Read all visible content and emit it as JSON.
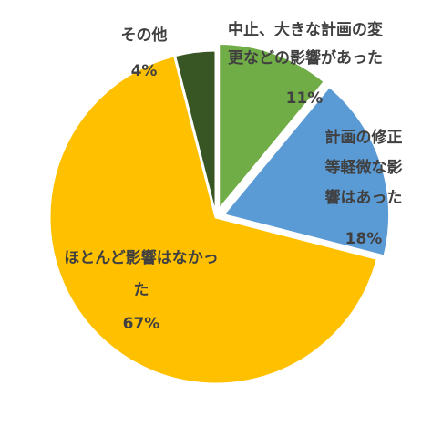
{
  "chart_data": {
    "type": "pie",
    "title": "",
    "start_angle_deg": 0,
    "direction": "clockwise",
    "slices": [
      {
        "label_lines": [
          "中止、大きな計画の変",
          "更などの影響があった"
        ],
        "value_label": "11%",
        "value": 11,
        "color": "#70ad47"
      },
      {
        "label_lines": [
          "計画の修正",
          "等軽微な影",
          "響はあった"
        ],
        "value_label": "18%",
        "value": 18,
        "color": "#5b9bd5"
      },
      {
        "label_lines": [
          "ほとんど影響はなかっ",
          "た"
        ],
        "value_label": "67%",
        "value": 67,
        "color": "#ffc000"
      },
      {
        "label_lines": [
          "その他"
        ],
        "value_label": "4%",
        "value": 4,
        "color": "#375623"
      }
    ]
  }
}
